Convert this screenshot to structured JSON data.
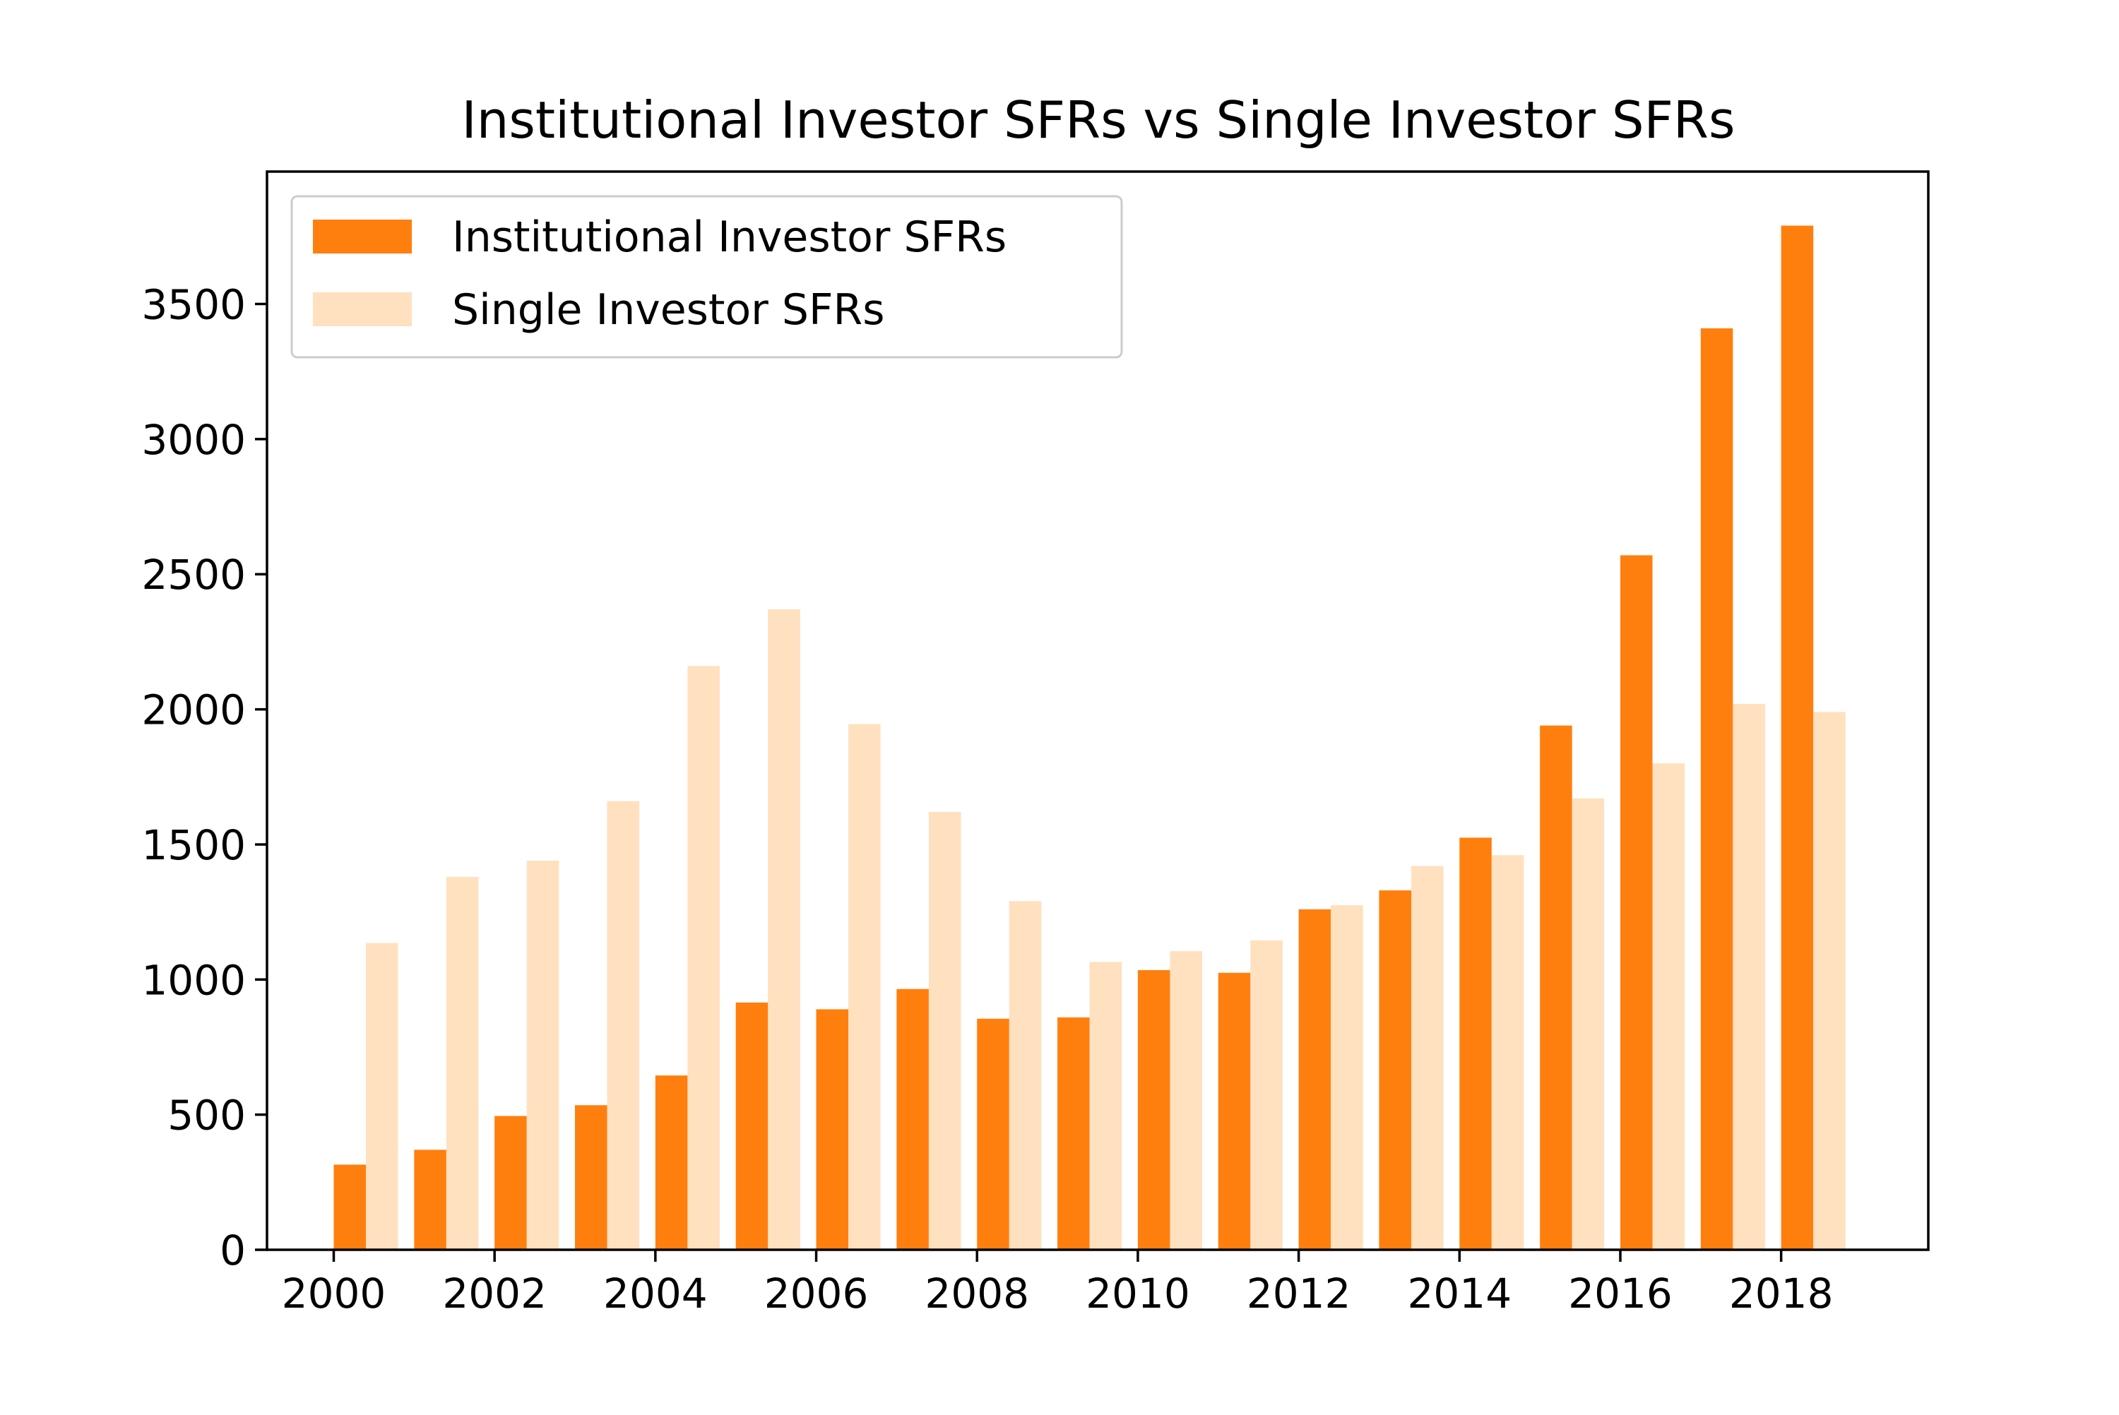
{
  "chart_data": {
    "type": "bar",
    "title": "Institutional Investor SFRs vs Single Investor SFRs",
    "xlabel": "",
    "ylabel": "",
    "x": [
      2000,
      2001,
      2002,
      2003,
      2004,
      2005,
      2006,
      2007,
      2008,
      2009,
      2010,
      2011,
      2012,
      2013,
      2014,
      2015,
      2016,
      2017,
      2018
    ],
    "series": [
      {
        "name": "Institutional Investor SFRs",
        "color": "#ff7f0e",
        "values": [
          315,
          370,
          495,
          535,
          645,
          915,
          890,
          965,
          855,
          860,
          1035,
          1025,
          1260,
          1330,
          1525,
          1940,
          2570,
          3410,
          3790
        ]
      },
      {
        "name": "Single Investor SFRs",
        "color": "#ffe0bf",
        "values": [
          1135,
          1380,
          1440,
          1660,
          2160,
          2370,
          1945,
          1620,
          1290,
          1065,
          1105,
          1145,
          1275,
          1420,
          1460,
          1670,
          1800,
          2020,
          1990
        ]
      }
    ],
    "xticks": [
      "2000",
      "2002",
      "2004",
      "2006",
      "2008",
      "2010",
      "2012",
      "2014",
      "2016",
      "2018"
    ],
    "yticks": [
      "0",
      "500",
      "1000",
      "1500",
      "2000",
      "2500",
      "3000",
      "3500"
    ],
    "xlim": [
      1999.17,
      2019.83
    ],
    "ylim": [
      0,
      3990
    ],
    "grid": false,
    "legend_position": "upper-left"
  }
}
